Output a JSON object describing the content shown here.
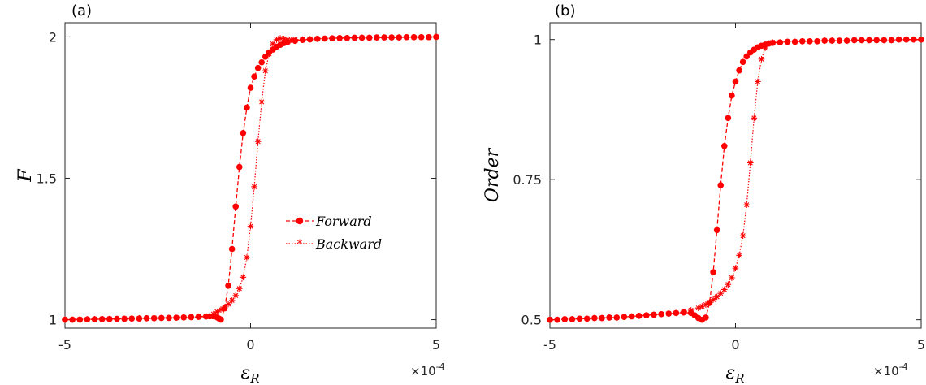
{
  "colors": {
    "series": "#ff0000",
    "axis": "#262626",
    "background": "#ffffff"
  },
  "chart_data": [
    {
      "type": "line",
      "panel_label": "(a)",
      "xlabel": "ε",
      "xlabel_sub": "R",
      "ylabel": "F",
      "x_multiplier_base": "×10",
      "x_multiplier_exp": "-4",
      "xlim": [
        -5,
        5
      ],
      "ylim": [
        0.97,
        2.05
      ],
      "xticks": [
        -5,
        0,
        5
      ],
      "xtick_labels": [
        "-5",
        "0",
        "5"
      ],
      "yticks": [
        1,
        1.5,
        2
      ],
      "ytick_labels": [
        "1",
        "1.5",
        "2"
      ],
      "grid": false,
      "legend": {
        "placement": "center-right",
        "entries": [
          "Forward",
          "Backward"
        ]
      },
      "series": [
        {
          "name": "Forward",
          "style": "dashed-circle",
          "x": [
            -5,
            -4.8,
            -4.6,
            -4.4,
            -4.2,
            -4,
            -3.8,
            -3.6,
            -3.4,
            -3.2,
            -3,
            -2.8,
            -2.6,
            -2.4,
            -2.2,
            -2,
            -1.8,
            -1.6,
            -1.4,
            -1.2,
            -1.1,
            -1,
            -0.9,
            -0.85,
            -0.8,
            -0.7,
            -0.6,
            -0.5,
            -0.4,
            -0.3,
            -0.2,
            -0.1,
            0,
            0.1,
            0.2,
            0.3,
            0.4,
            0.5,
            0.6,
            0.7,
            0.8,
            0.9,
            1,
            1.2,
            1.4,
            1.6,
            1.8,
            2,
            2.2,
            2.4,
            2.6,
            2.8,
            3,
            3.2,
            3.4,
            3.6,
            3.8,
            4,
            4.2,
            4.4,
            4.6,
            4.8,
            5
          ],
          "y": [
            1,
            1,
            1,
            1.001,
            1.001,
            1.002,
            1.002,
            1.003,
            1.003,
            1.004,
            1.004,
            1.005,
            1.005,
            1.006,
            1.006,
            1.007,
            1.008,
            1.009,
            1.01,
            1.011,
            1.012,
            1.012,
            1.008,
            1.004,
            1,
            1.04,
            1.12,
            1.25,
            1.4,
            1.54,
            1.66,
            1.75,
            1.82,
            1.86,
            1.89,
            1.91,
            1.93,
            1.945,
            1.955,
            1.965,
            1.972,
            1.978,
            1.982,
            1.986,
            1.989,
            1.991,
            1.993,
            1.994,
            1.995,
            1.996,
            1.996,
            1.997,
            1.997,
            1.997,
            1.998,
            1.998,
            1.998,
            1.998,
            1.999,
            1.999,
            1.999,
            1.999,
            2
          ]
        },
        {
          "name": "Backward",
          "style": "dotted-star",
          "x": [
            -5,
            -4.8,
            -4.6,
            -4.4,
            -4.2,
            -4,
            -3.8,
            -3.6,
            -3.4,
            -3.2,
            -3,
            -2.8,
            -2.6,
            -2.4,
            -2.2,
            -2,
            -1.8,
            -1.6,
            -1.4,
            -1.2,
            -1,
            -0.9,
            -0.8,
            -0.7,
            -0.6,
            -0.5,
            -0.4,
            -0.3,
            -0.2,
            -0.1,
            0,
            0.1,
            0.2,
            0.3,
            0.4,
            0.5,
            0.6,
            0.7,
            0.8,
            0.9,
            1,
            1.1,
            1.2,
            1.4,
            1.6,
            1.8,
            2,
            2.2,
            2.4,
            2.6,
            2.8,
            3,
            3.2,
            3.4,
            3.6,
            3.8,
            4,
            4.2,
            4.4,
            4.6,
            4.8,
            5
          ],
          "y": [
            1,
            1,
            1.001,
            1.001,
            1.002,
            1.002,
            1.003,
            1.003,
            1.004,
            1.004,
            1.005,
            1.005,
            1.006,
            1.006,
            1.007,
            1.007,
            1.008,
            1.009,
            1.011,
            1.013,
            1.02,
            1.028,
            1.036,
            1.044,
            1.055,
            1.068,
            1.085,
            1.11,
            1.15,
            1.22,
            1.33,
            1.47,
            1.63,
            1.77,
            1.88,
            1.94,
            1.975,
            1.99,
            1.995,
            1.993,
            1.99,
            1.989,
            1.99,
            1.991,
            1.992,
            1.993,
            1.994,
            1.995,
            1.995,
            1.996,
            1.996,
            1.997,
            1.997,
            1.997,
            1.998,
            1.998,
            1.998,
            1.999,
            1.999,
            1.999,
            1.999,
            2
          ]
        }
      ]
    },
    {
      "type": "line",
      "panel_label": "(b)",
      "xlabel": "ε",
      "xlabel_sub": "R",
      "ylabel": "Order",
      "x_multiplier_base": "×10",
      "x_multiplier_exp": "-4",
      "xlim": [
        -5,
        5
      ],
      "ylim": [
        0.485,
        1.03
      ],
      "xticks": [
        -5,
        0,
        5
      ],
      "xtick_labels": [
        "-5",
        "0",
        "5"
      ],
      "yticks": [
        0.5,
        0.75,
        1
      ],
      "ytick_labels": [
        "0.5",
        "0.75",
        "1"
      ],
      "grid": false,
      "series": [
        {
          "name": "Forward",
          "style": "dashed-circle",
          "x": [
            -5,
            -4.8,
            -4.6,
            -4.4,
            -4.2,
            -4,
            -3.8,
            -3.6,
            -3.4,
            -3.2,
            -3,
            -2.8,
            -2.6,
            -2.4,
            -2.2,
            -2,
            -1.8,
            -1.6,
            -1.4,
            -1.2,
            -1.1,
            -1,
            -0.9,
            -0.8,
            -0.7,
            -0.6,
            -0.5,
            -0.4,
            -0.3,
            -0.2,
            -0.1,
            0,
            0.1,
            0.2,
            0.3,
            0.4,
            0.5,
            0.6,
            0.7,
            0.8,
            0.9,
            1,
            1.2,
            1.4,
            1.6,
            1.8,
            2,
            2.2,
            2.4,
            2.6,
            2.8,
            3,
            3.2,
            3.4,
            3.6,
            3.8,
            4,
            4.2,
            4.4,
            4.6,
            4.8,
            5
          ],
          "y": [
            0.5,
            0.5,
            0.501,
            0.501,
            0.502,
            0.502,
            0.503,
            0.503,
            0.504,
            0.504,
            0.505,
            0.506,
            0.507,
            0.508,
            0.509,
            0.51,
            0.511,
            0.512,
            0.513,
            0.512,
            0.508,
            0.503,
            0.5,
            0.504,
            0.53,
            0.585,
            0.66,
            0.74,
            0.81,
            0.86,
            0.9,
            0.925,
            0.945,
            0.96,
            0.97,
            0.977,
            0.982,
            0.986,
            0.989,
            0.991,
            0.993,
            0.994,
            0.995,
            0.996,
            0.996,
            0.997,
            0.997,
            0.997,
            0.998,
            0.998,
            0.998,
            0.998,
            0.999,
            0.999,
            0.999,
            0.999,
            0.999,
            0.999,
            1,
            1,
            1,
            1
          ]
        },
        {
          "name": "Backward",
          "style": "dotted-star",
          "x": [
            -5,
            -4.8,
            -4.6,
            -4.4,
            -4.2,
            -4,
            -3.8,
            -3.6,
            -3.4,
            -3.2,
            -3,
            -2.8,
            -2.6,
            -2.4,
            -2.2,
            -2,
            -1.8,
            -1.6,
            -1.4,
            -1.2,
            -1,
            -0.9,
            -0.8,
            -0.7,
            -0.6,
            -0.5,
            -0.4,
            -0.3,
            -0.2,
            -0.1,
            0,
            0.1,
            0.2,
            0.3,
            0.4,
            0.5,
            0.6,
            0.7,
            0.8,
            0.9,
            1,
            1.2,
            1.4,
            1.6,
            1.8,
            2,
            2.2,
            2.4,
            2.6,
            2.8,
            3,
            3.2,
            3.4,
            3.6,
            3.8,
            4,
            4.2,
            4.4,
            4.6,
            4.8,
            5
          ],
          "y": [
            0.5,
            0.5,
            0.501,
            0.501,
            0.502,
            0.502,
            0.503,
            0.503,
            0.504,
            0.504,
            0.505,
            0.506,
            0.507,
            0.508,
            0.509,
            0.51,
            0.511,
            0.512,
            0.514,
            0.517,
            0.521,
            0.524,
            0.527,
            0.531,
            0.536,
            0.541,
            0.547,
            0.554,
            0.563,
            0.575,
            0.592,
            0.615,
            0.65,
            0.705,
            0.78,
            0.86,
            0.925,
            0.965,
            0.985,
            0.993,
            0.995,
            0.995,
            0.996,
            0.996,
            0.997,
            0.997,
            0.997,
            0.998,
            0.998,
            0.998,
            0.998,
            0.999,
            0.999,
            0.999,
            0.999,
            0.999,
            0.999,
            1,
            1,
            1,
            1
          ]
        }
      ]
    }
  ]
}
